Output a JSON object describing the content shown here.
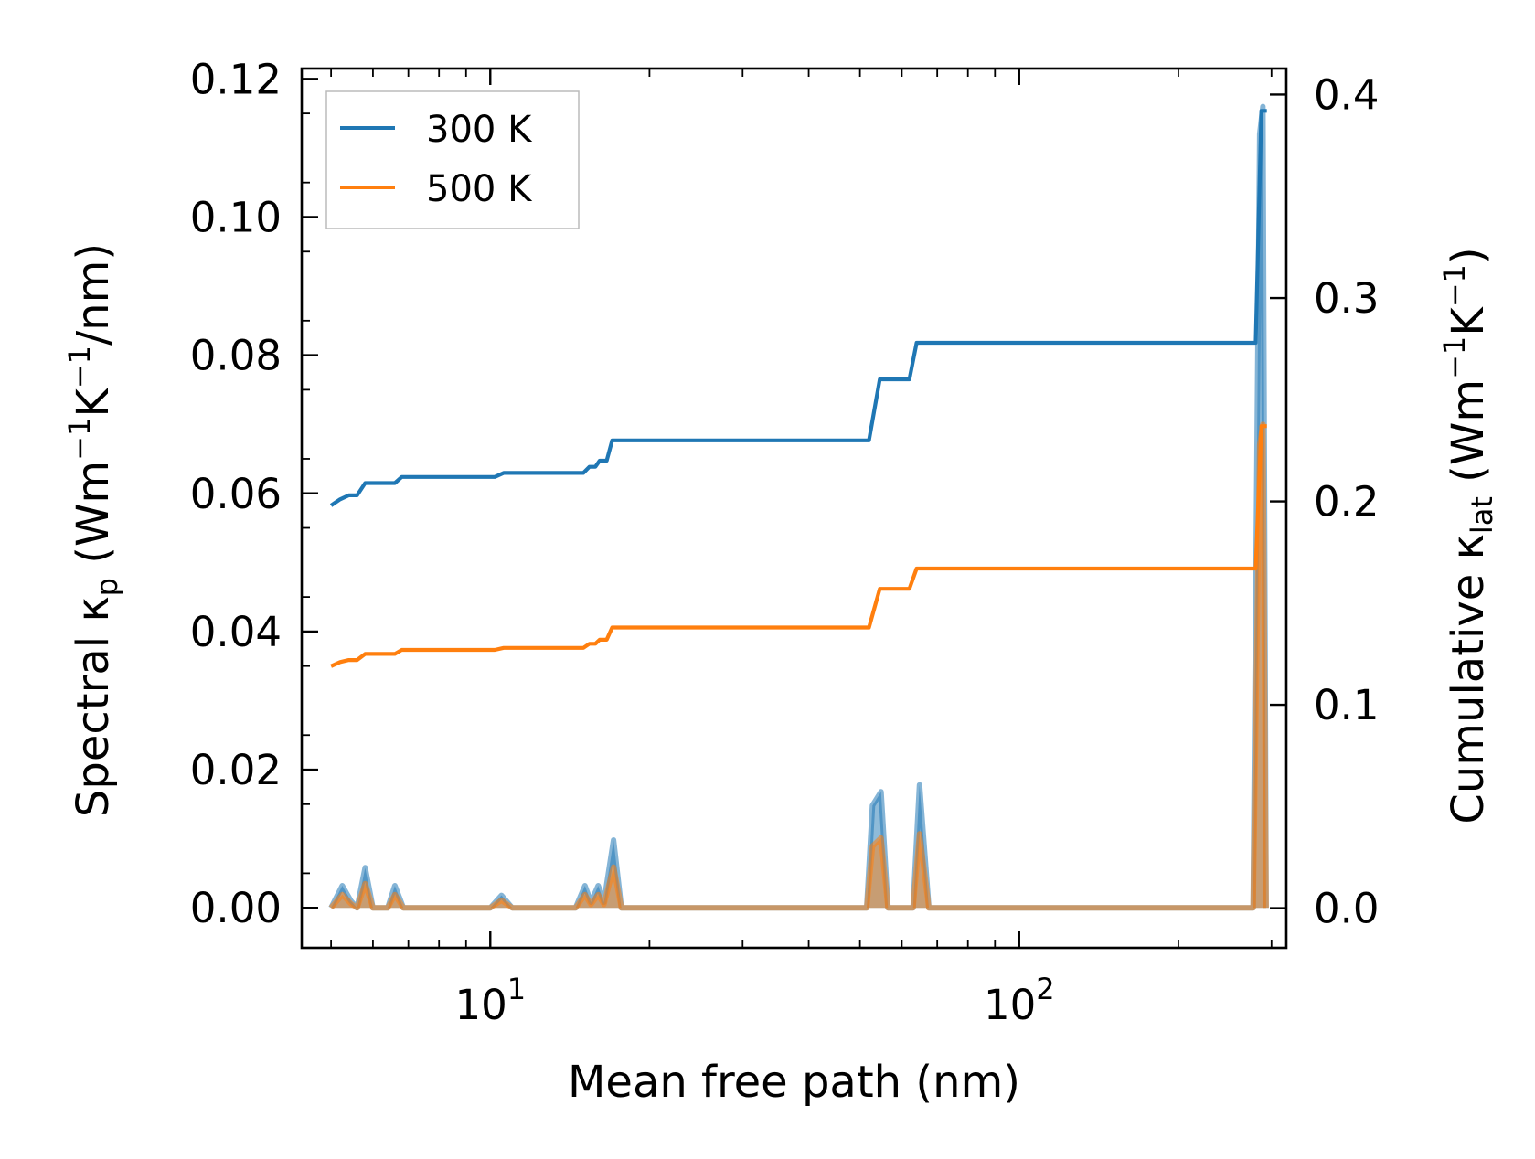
{
  "chart_data": {
    "type": "line",
    "xlabel": "Mean free path (nm)",
    "xscale": "log",
    "xlim": [
      4.4,
      320
    ],
    "x_ticks": [
      {
        "value": 10,
        "base": "10",
        "exp": "1"
      },
      {
        "value": 100,
        "base": "10",
        "exp": "2"
      }
    ],
    "left_axis": {
      "label_main": "Spectral κ",
      "label_sub": "p",
      "label_unit_1": " (Wm",
      "label_sup_1": "−1",
      "label_unit_2": "K",
      "label_sup_2": "−1",
      "label_unit_3": "/nm)",
      "ylim": [
        -0.0058,
        0.1215
      ],
      "ticks": [
        0.0,
        0.02,
        0.04,
        0.06,
        0.08,
        0.1,
        0.12
      ],
      "tick_labels": [
        "0.00",
        "0.02",
        "0.04",
        "0.06",
        "0.08",
        "0.10",
        "0.12"
      ]
    },
    "right_axis": {
      "label_main": "Cumulative κ",
      "label_sub": "lat",
      "label_unit_1": " (Wm",
      "label_sup_1": "−1",
      "label_unit_2": "K",
      "label_sup_2": "−1",
      "label_unit_3": ")",
      "ylim": [
        -0.0195,
        0.4128
      ],
      "ticks": [
        0.0,
        0.1,
        0.2,
        0.3,
        0.4
      ],
      "tick_labels": [
        "0.0",
        "0.1",
        "0.2",
        "0.3",
        "0.4"
      ]
    },
    "legend": {
      "position": "top-left"
    },
    "series": [
      {
        "name": "300 K",
        "color": "#1f77b4",
        "cumulative": [
          [
            5.0,
            0.198
          ],
          [
            5.2,
            0.201
          ],
          [
            5.4,
            0.203
          ],
          [
            5.6,
            0.203
          ],
          [
            5.8,
            0.209
          ],
          [
            6.6,
            0.209
          ],
          [
            6.8,
            0.212
          ],
          [
            10.2,
            0.212
          ],
          [
            10.6,
            0.214
          ],
          [
            15.0,
            0.214
          ],
          [
            15.4,
            0.217
          ],
          [
            15.8,
            0.217
          ],
          [
            16.1,
            0.22
          ],
          [
            16.6,
            0.22
          ],
          [
            17.0,
            0.23
          ],
          [
            52.0,
            0.23
          ],
          [
            54.5,
            0.26
          ],
          [
            62.0,
            0.26
          ],
          [
            64.0,
            0.278
          ],
          [
            280,
            0.278
          ],
          [
            287,
            0.392
          ],
          [
            294,
            0.392
          ]
        ],
        "spectral": [
          [
            5.0,
            0.0
          ],
          [
            5.25,
            0.0032
          ],
          [
            5.45,
            0.001
          ],
          [
            5.6,
            0.0
          ],
          [
            5.8,
            0.0058
          ],
          [
            6.0,
            0.0
          ],
          [
            6.4,
            0.0
          ],
          [
            6.6,
            0.0032
          ],
          [
            6.85,
            0.0
          ],
          [
            10.0,
            0.0
          ],
          [
            10.5,
            0.0018
          ],
          [
            11.0,
            0.0
          ],
          [
            14.5,
            0.0
          ],
          [
            15.1,
            0.0032
          ],
          [
            15.5,
            0.0008
          ],
          [
            16.0,
            0.0032
          ],
          [
            16.4,
            0.0008
          ],
          [
            17.1,
            0.0098
          ],
          [
            17.7,
            0.0
          ],
          [
            51.5,
            0.0
          ],
          [
            52.8,
            0.0148
          ],
          [
            54.8,
            0.0168
          ],
          [
            56.5,
            0.0
          ],
          [
            63.0,
            0.0
          ],
          [
            64.8,
            0.0178
          ],
          [
            67.5,
            0.0
          ],
          [
            277,
            0.0
          ],
          [
            285,
            0.112
          ],
          [
            289,
            0.116
          ],
          [
            293,
            0.0
          ]
        ]
      },
      {
        "name": "500 K",
        "color": "#ff7f0e",
        "cumulative": [
          [
            5.0,
            0.119
          ],
          [
            5.2,
            0.121
          ],
          [
            5.4,
            0.122
          ],
          [
            5.6,
            0.122
          ],
          [
            5.8,
            0.125
          ],
          [
            6.6,
            0.125
          ],
          [
            6.8,
            0.127
          ],
          [
            10.2,
            0.127
          ],
          [
            10.6,
            0.128
          ],
          [
            15.0,
            0.128
          ],
          [
            15.4,
            0.13
          ],
          [
            15.8,
            0.13
          ],
          [
            16.1,
            0.132
          ],
          [
            16.6,
            0.132
          ],
          [
            17.0,
            0.138
          ],
          [
            52.0,
            0.138
          ],
          [
            54.5,
            0.157
          ],
          [
            62.0,
            0.157
          ],
          [
            64.0,
            0.167
          ],
          [
            280,
            0.167
          ],
          [
            287,
            0.237
          ],
          [
            294,
            0.237
          ]
        ],
        "spectral": [
          [
            5.0,
            0.0
          ],
          [
            5.25,
            0.0019
          ],
          [
            5.45,
            0.0006
          ],
          [
            5.6,
            0.0
          ],
          [
            5.8,
            0.0035
          ],
          [
            6.0,
            0.0
          ],
          [
            6.4,
            0.0
          ],
          [
            6.6,
            0.0019
          ],
          [
            6.85,
            0.0
          ],
          [
            10.0,
            0.0
          ],
          [
            10.5,
            0.0011
          ],
          [
            11.0,
            0.0
          ],
          [
            14.5,
            0.0
          ],
          [
            15.1,
            0.0019
          ],
          [
            15.5,
            0.0005
          ],
          [
            16.0,
            0.0019
          ],
          [
            16.4,
            0.0005
          ],
          [
            17.1,
            0.0059
          ],
          [
            17.7,
            0.0
          ],
          [
            51.5,
            0.0
          ],
          [
            52.8,
            0.0089
          ],
          [
            54.8,
            0.0101
          ],
          [
            56.5,
            0.0
          ],
          [
            63.0,
            0.0
          ],
          [
            64.8,
            0.0107
          ],
          [
            67.5,
            0.0
          ],
          [
            277,
            0.0
          ],
          [
            285,
            0.067
          ],
          [
            289,
            0.07
          ],
          [
            293,
            0.0
          ]
        ]
      }
    ]
  }
}
